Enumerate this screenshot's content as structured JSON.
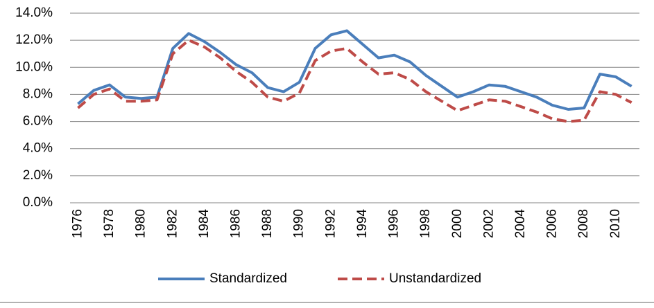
{
  "chart_data": {
    "type": "line",
    "categories": [
      "1976",
      null,
      "1978",
      null,
      "1980",
      null,
      "1982",
      null,
      "1984",
      null,
      "1986",
      null,
      "1988",
      null,
      "1990",
      null,
      "1992",
      null,
      "1994",
      null,
      "1996",
      null,
      "1998",
      null,
      "2000",
      null,
      "2002",
      null,
      "2004",
      null,
      "2006",
      null,
      "2008",
      null,
      "2010",
      null
    ],
    "series": [
      {
        "name": "Standardized",
        "color": "#4a7ebb",
        "dashed": false,
        "values": [
          7.3,
          8.3,
          8.7,
          7.8,
          7.7,
          7.8,
          11.4,
          12.5,
          11.9,
          11.1,
          10.2,
          9.6,
          8.5,
          8.2,
          8.9,
          11.4,
          12.4,
          12.7,
          11.7,
          10.7,
          10.9,
          10.4,
          9.4,
          8.6,
          7.8,
          8.2,
          8.7,
          8.6,
          8.2,
          7.8,
          7.2,
          6.9,
          7.0,
          9.5,
          9.3,
          8.6
        ]
      },
      {
        "name": "Unstandardized",
        "color": "#be4b48",
        "dashed": true,
        "values": [
          7.0,
          8.0,
          8.4,
          7.5,
          7.5,
          7.6,
          11.0,
          12.0,
          11.5,
          10.7,
          9.7,
          8.9,
          7.8,
          7.5,
          8.1,
          10.5,
          11.2,
          11.4,
          10.4,
          9.5,
          9.6,
          9.1,
          8.2,
          7.5,
          6.8,
          7.2,
          7.6,
          7.5,
          7.1,
          6.7,
          6.2,
          6.0,
          6.1,
          8.2,
          8.0,
          7.4
        ]
      }
    ],
    "ylim": [
      0,
      14
    ],
    "yticks": [
      {
        "value": 0,
        "label": "0.0%"
      },
      {
        "value": 2,
        "label": "2.0%"
      },
      {
        "value": 4,
        "label": "4.0%"
      },
      {
        "value": 6,
        "label": "6.0%"
      },
      {
        "value": 8,
        "label": "8.0%"
      },
      {
        "value": 10,
        "label": "10.0%"
      },
      {
        "value": 12,
        "label": "12.0%"
      },
      {
        "value": 14,
        "label": "14.0%"
      }
    ],
    "grid": true,
    "legend": "bottom"
  }
}
